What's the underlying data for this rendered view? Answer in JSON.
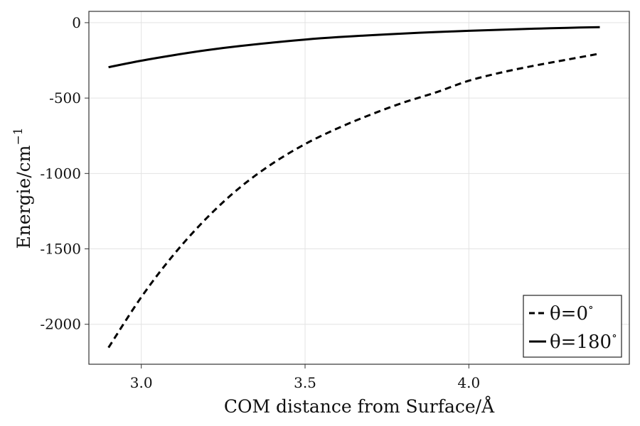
{
  "chart_data": {
    "type": "line",
    "title": "",
    "xlabel": "COM distance from Surface/Å",
    "ylabel_main": "Energie/cm",
    "ylabel_sup": "−1",
    "xlim": [
      2.84,
      4.49
    ],
    "ylim": [
      -2265,
      75
    ],
    "xticks": [
      3.0,
      3.5,
      4.0
    ],
    "xtick_labels": [
      "3.0",
      "3.5",
      "4.0"
    ],
    "yticks": [
      0,
      -500,
      -1000,
      -1500,
      -2000
    ],
    "ytick_labels": [
      "0",
      "-500",
      "-1000",
      "-1500",
      "-2000"
    ],
    "grid": true,
    "legend_position": "bottom-right",
    "x": [
      2.9,
      3.0,
      3.1,
      3.2,
      3.3,
      3.4,
      3.5,
      3.6,
      3.7,
      3.8,
      3.9,
      4.0,
      4.1,
      4.2,
      4.3,
      4.4
    ],
    "series": [
      {
        "name": "θ=0°",
        "name_main": "θ=0",
        "name_sup": "∘",
        "style": "dashed",
        "color": "#000000",
        "values": [
          -2155,
          -1820,
          -1535,
          -1295,
          -1095,
          -935,
          -805,
          -700,
          -610,
          -530,
          -462,
          -385,
          -330,
          -285,
          -245,
          -205
        ]
      },
      {
        "name": "θ=180°",
        "name_main": "θ=180",
        "name_sup": "∘",
        "style": "solid",
        "color": "#000000",
        "values": [
          -295,
          -252,
          -215,
          -182,
          -155,
          -132,
          -112,
          -96,
          -83,
          -72,
          -62,
          -54,
          -47,
          -40,
          -34,
          -30
        ]
      }
    ]
  }
}
